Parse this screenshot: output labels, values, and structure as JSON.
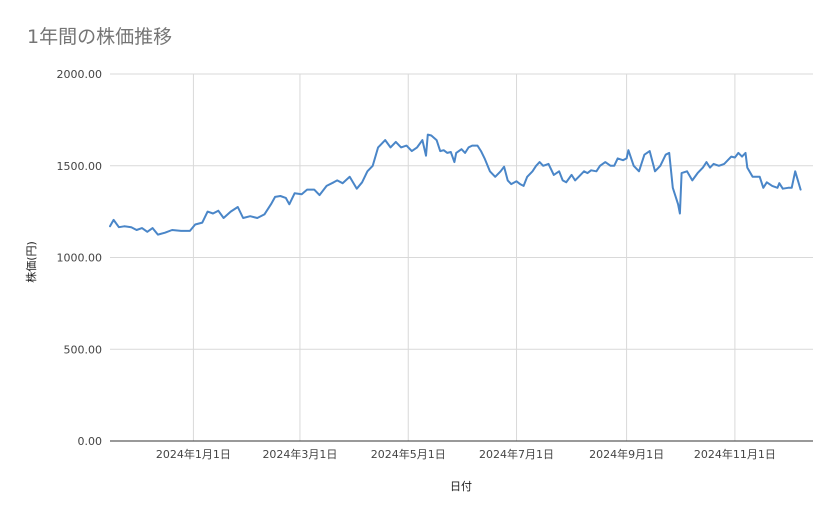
{
  "chart_data": {
    "type": "line",
    "title": "1年間の株価推移",
    "xlabel": "日付",
    "ylabel": "株価(円)",
    "ylim": [
      0,
      2000
    ],
    "yticks": [
      0,
      500,
      1000,
      1500,
      2000
    ],
    "ytick_labels": [
      "0.00",
      "500.00",
      "1000.00",
      "1500.00",
      "2000.00"
    ],
    "xlim": [
      "2023-11-15",
      "2024-12-15"
    ],
    "xticks": [
      "2024-01-01",
      "2024-03-01",
      "2024-05-01",
      "2024-07-01",
      "2024-09-01",
      "2024-11-01"
    ],
    "xtick_labels": [
      "2024年1月1日",
      "2024年3月1日",
      "2024年5月1日",
      "2024年7月1日",
      "2024年9月1日",
      "2024年11月1日"
    ],
    "grid": true,
    "line_color": "#4a86c8",
    "series": [
      {
        "name": "",
        "points": [
          [
            "2023-11-15",
            1170
          ],
          [
            "2023-11-17",
            1205
          ],
          [
            "2023-11-20",
            1165
          ],
          [
            "2023-11-23",
            1170
          ],
          [
            "2023-11-27",
            1165
          ],
          [
            "2023-11-30",
            1150
          ],
          [
            "2023-12-03",
            1160
          ],
          [
            "2023-12-06",
            1140
          ],
          [
            "2023-12-09",
            1160
          ],
          [
            "2023-12-12",
            1125
          ],
          [
            "2023-12-16",
            1135
          ],
          [
            "2023-12-20",
            1150
          ],
          [
            "2023-12-25",
            1145
          ],
          [
            "2023-12-30",
            1145
          ],
          [
            "2024-01-02",
            1180
          ],
          [
            "2024-01-06",
            1190
          ],
          [
            "2024-01-09",
            1250
          ],
          [
            "2024-01-12",
            1240
          ],
          [
            "2024-01-15",
            1255
          ],
          [
            "2024-01-18",
            1215
          ],
          [
            "2024-01-22",
            1250
          ],
          [
            "2024-01-26",
            1275
          ],
          [
            "2024-01-29",
            1215
          ],
          [
            "2024-02-02",
            1225
          ],
          [
            "2024-02-06",
            1215
          ],
          [
            "2024-02-10",
            1235
          ],
          [
            "2024-02-14",
            1295
          ],
          [
            "2024-02-16",
            1330
          ],
          [
            "2024-02-19",
            1335
          ],
          [
            "2024-02-22",
            1325
          ],
          [
            "2024-02-24",
            1290
          ],
          [
            "2024-02-27",
            1350
          ],
          [
            "2024-03-02",
            1345
          ],
          [
            "2024-03-05",
            1370
          ],
          [
            "2024-03-09",
            1370
          ],
          [
            "2024-03-12",
            1340
          ],
          [
            "2024-03-16",
            1390
          ],
          [
            "2024-03-20",
            1410
          ],
          [
            "2024-03-22",
            1420
          ],
          [
            "2024-03-25",
            1405
          ],
          [
            "2024-03-29",
            1440
          ],
          [
            "2024-04-02",
            1375
          ],
          [
            "2024-04-05",
            1410
          ],
          [
            "2024-04-08",
            1470
          ],
          [
            "2024-04-11",
            1500
          ],
          [
            "2024-04-14",
            1600
          ],
          [
            "2024-04-18",
            1640
          ],
          [
            "2024-04-21",
            1600
          ],
          [
            "2024-04-24",
            1630
          ],
          [
            "2024-04-27",
            1600
          ],
          [
            "2024-04-30",
            1610
          ],
          [
            "2024-05-03",
            1580
          ],
          [
            "2024-05-06",
            1600
          ],
          [
            "2024-05-09",
            1640
          ],
          [
            "2024-05-11",
            1555
          ],
          [
            "2024-05-12",
            1670
          ],
          [
            "2024-05-14",
            1665
          ],
          [
            "2024-05-17",
            1640
          ],
          [
            "2024-05-19",
            1580
          ],
          [
            "2024-05-21",
            1585
          ],
          [
            "2024-05-23",
            1570
          ],
          [
            "2024-05-25",
            1575
          ],
          [
            "2024-05-27",
            1520
          ],
          [
            "2024-05-28",
            1570
          ],
          [
            "2024-05-31",
            1590
          ],
          [
            "2024-06-02",
            1570
          ],
          [
            "2024-06-04",
            1600
          ],
          [
            "2024-06-06",
            1610
          ],
          [
            "2024-06-09",
            1610
          ],
          [
            "2024-06-11",
            1580
          ],
          [
            "2024-06-13",
            1540
          ],
          [
            "2024-06-16",
            1470
          ],
          [
            "2024-06-19",
            1440
          ],
          [
            "2024-06-22",
            1470
          ],
          [
            "2024-06-24",
            1495
          ],
          [
            "2024-06-26",
            1420
          ],
          [
            "2024-06-28",
            1400
          ],
          [
            "2024-07-01",
            1415
          ],
          [
            "2024-07-03",
            1400
          ],
          [
            "2024-07-05",
            1390
          ],
          [
            "2024-07-07",
            1440
          ],
          [
            "2024-07-10",
            1470
          ],
          [
            "2024-07-12",
            1500
          ],
          [
            "2024-07-14",
            1520
          ],
          [
            "2024-07-16",
            1500
          ],
          [
            "2024-07-19",
            1510
          ],
          [
            "2024-07-22",
            1450
          ],
          [
            "2024-07-25",
            1470
          ],
          [
            "2024-07-27",
            1420
          ],
          [
            "2024-07-29",
            1410
          ],
          [
            "2024-08-01",
            1450
          ],
          [
            "2024-08-03",
            1420
          ],
          [
            "2024-08-05",
            1440
          ],
          [
            "2024-08-08",
            1470
          ],
          [
            "2024-08-10",
            1460
          ],
          [
            "2024-08-12",
            1475
          ],
          [
            "2024-08-15",
            1470
          ],
          [
            "2024-08-17",
            1500
          ],
          [
            "2024-08-20",
            1520
          ],
          [
            "2024-08-23",
            1500
          ],
          [
            "2024-08-25",
            1500
          ],
          [
            "2024-08-27",
            1540
          ],
          [
            "2024-08-30",
            1530
          ],
          [
            "2024-09-01",
            1540
          ],
          [
            "2024-09-02",
            1585
          ],
          [
            "2024-09-05",
            1500
          ],
          [
            "2024-09-08",
            1470
          ],
          [
            "2024-09-11",
            1560
          ],
          [
            "2024-09-14",
            1580
          ],
          [
            "2024-09-17",
            1470
          ],
          [
            "2024-09-20",
            1500
          ],
          [
            "2024-09-23",
            1560
          ],
          [
            "2024-09-25",
            1570
          ],
          [
            "2024-09-27",
            1380
          ],
          [
            "2024-09-30",
            1290
          ],
          [
            "2024-10-01",
            1240
          ],
          [
            "2024-10-02",
            1460
          ],
          [
            "2024-10-05",
            1470
          ],
          [
            "2024-10-08",
            1420
          ],
          [
            "2024-10-11",
            1460
          ],
          [
            "2024-10-14",
            1490
          ],
          [
            "2024-10-16",
            1520
          ],
          [
            "2024-10-18",
            1490
          ],
          [
            "2024-10-20",
            1510
          ],
          [
            "2024-10-23",
            1500
          ],
          [
            "2024-10-26",
            1510
          ],
          [
            "2024-10-30",
            1550
          ],
          [
            "2024-11-01",
            1545
          ],
          [
            "2024-11-03",
            1570
          ],
          [
            "2024-11-05",
            1550
          ],
          [
            "2024-11-07",
            1570
          ],
          [
            "2024-11-08",
            1490
          ],
          [
            "2024-11-11",
            1440
          ],
          [
            "2024-11-15",
            1440
          ],
          [
            "2024-11-17",
            1380
          ],
          [
            "2024-11-19",
            1410
          ],
          [
            "2024-11-22",
            1390
          ],
          [
            "2024-11-25",
            1380
          ],
          [
            "2024-11-26",
            1405
          ],
          [
            "2024-11-28",
            1375
          ],
          [
            "2024-12-01",
            1380
          ],
          [
            "2024-12-03",
            1380
          ],
          [
            "2024-12-05",
            1470
          ],
          [
            "2024-12-08",
            1370
          ]
        ]
      }
    ]
  }
}
